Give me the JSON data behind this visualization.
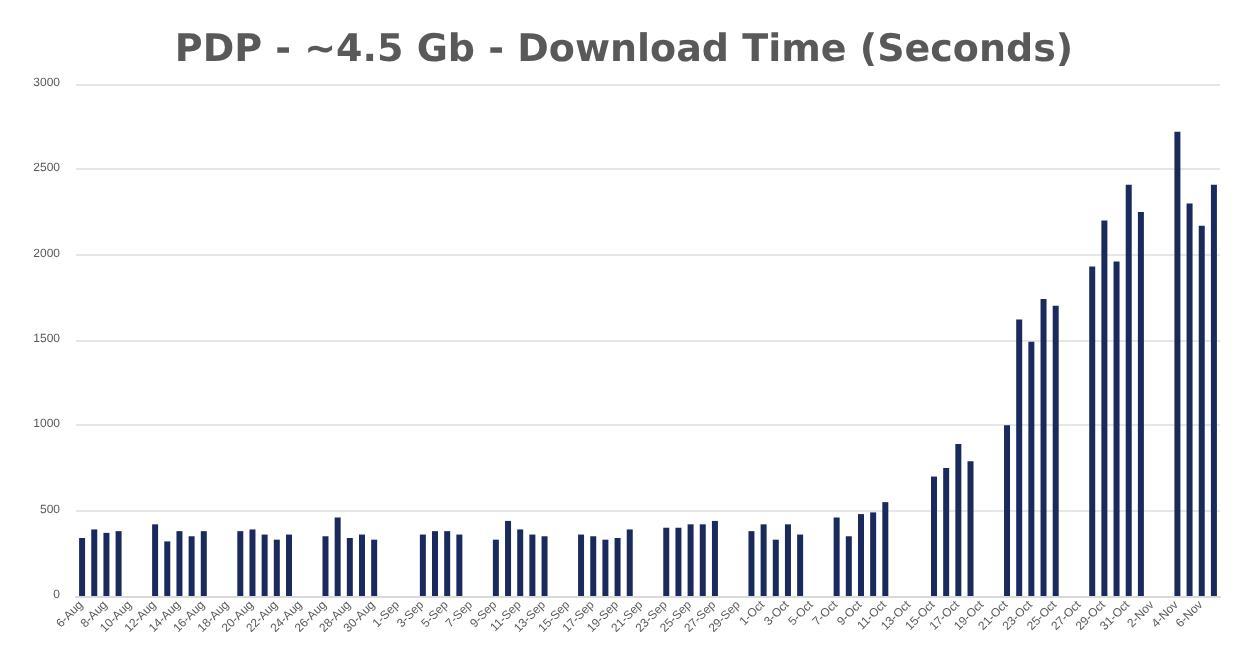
{
  "chart_data": {
    "type": "bar",
    "title": "PDP - ~4.5 Gb - Download Time (Seconds)",
    "categories": [
      "6-Aug",
      null,
      "8-Aug",
      null,
      "10-Aug",
      null,
      "12-Aug",
      null,
      "14-Aug",
      null,
      "16-Aug",
      null,
      "18-Aug",
      null,
      "20-Aug",
      null,
      "22-Aug",
      null,
      "24-Aug",
      null,
      "26-Aug",
      null,
      "28-Aug",
      null,
      "30-Aug",
      null,
      "1-Sep",
      null,
      "3-Sep",
      null,
      "5-Sep",
      null,
      "7-Sep",
      null,
      "9-Sep",
      null,
      "11-Sep",
      null,
      "13-Sep",
      null,
      "15-Sep",
      null,
      "17-Sep",
      null,
      "19-Sep",
      null,
      "21-Sep",
      null,
      "23-Sep",
      null,
      "25-Sep",
      null,
      "27-Sep",
      null,
      "29-Sep",
      null,
      "1-Oct",
      null,
      "3-Oct",
      null,
      "5-Oct",
      null,
      "7-Oct",
      null,
      "9-Oct",
      null,
      "11-Oct",
      null,
      "13-Oct",
      null,
      "15-Oct",
      null,
      "17-Oct",
      null,
      "19-Oct",
      null,
      "21-Oct",
      null,
      "23-Oct",
      null,
      "25-Oct",
      null,
      "27-Oct",
      null,
      "29-Oct",
      null,
      "31-Oct",
      null,
      "2-Nov",
      null,
      "4-Nov",
      null,
      "6-Nov",
      null
    ],
    "values": [
      340,
      390,
      370,
      380,
      null,
      null,
      420,
      320,
      380,
      350,
      380,
      null,
      null,
      380,
      390,
      360,
      330,
      360,
      null,
      null,
      350,
      460,
      340,
      360,
      330,
      null,
      null,
      null,
      360,
      380,
      380,
      360,
      null,
      null,
      330,
      440,
      390,
      360,
      350,
      null,
      null,
      360,
      350,
      330,
      340,
      390,
      null,
      null,
      400,
      400,
      420,
      420,
      440,
      null,
      null,
      380,
      420,
      330,
      420,
      360,
      null,
      null,
      460,
      350,
      480,
      490,
      550,
      null,
      null,
      null,
      700,
      750,
      890,
      790,
      null,
      null,
      1000,
      1620,
      1490,
      1740,
      1700,
      null,
      null,
      1930,
      2200,
      1960,
      2410,
      2250,
      null,
      null,
      2720,
      2300,
      2170,
      2410
    ],
    "color": "#1b2a5c",
    "ylim": [
      0,
      3000
    ],
    "yticks": [
      0,
      500,
      1000,
      1500,
      2000,
      2500,
      3000
    ],
    "grid": true
  }
}
